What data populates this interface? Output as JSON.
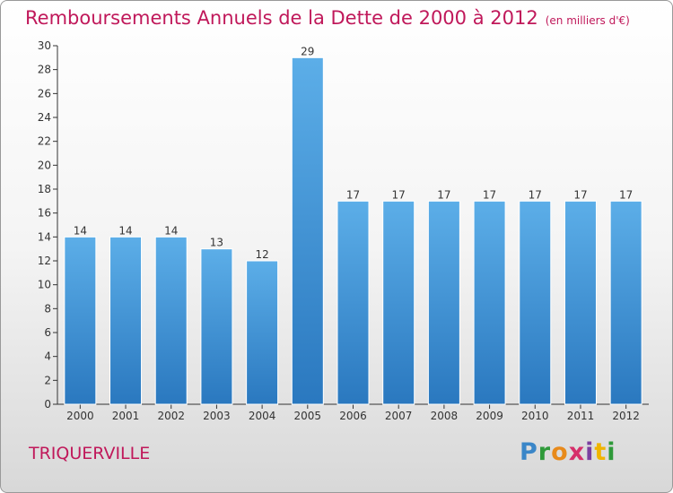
{
  "chart_data": {
    "type": "bar",
    "title": "Remboursements Annuels de la Dette de 2000 à 2012",
    "subtitle": "(en milliers d'€)",
    "categories": [
      "2000",
      "2001",
      "2002",
      "2003",
      "2004",
      "2005",
      "2006",
      "2007",
      "2008",
      "2009",
      "2010",
      "2011",
      "2012"
    ],
    "values": [
      14,
      14,
      14,
      13,
      12,
      29,
      17,
      17,
      17,
      17,
      17,
      17,
      17
    ],
    "ylim": [
      0,
      30
    ],
    "yticks": [
      0,
      2,
      4,
      6,
      8,
      10,
      12,
      14,
      16,
      18,
      20,
      22,
      24,
      26,
      28,
      30
    ],
    "grid": false,
    "legend": "none",
    "bar_color": "#3f8fd5"
  },
  "commune": "TRIQUERVILLE",
  "logo": {
    "letters": [
      "P",
      "r",
      "o",
      "x",
      "i",
      "t",
      "i"
    ]
  }
}
